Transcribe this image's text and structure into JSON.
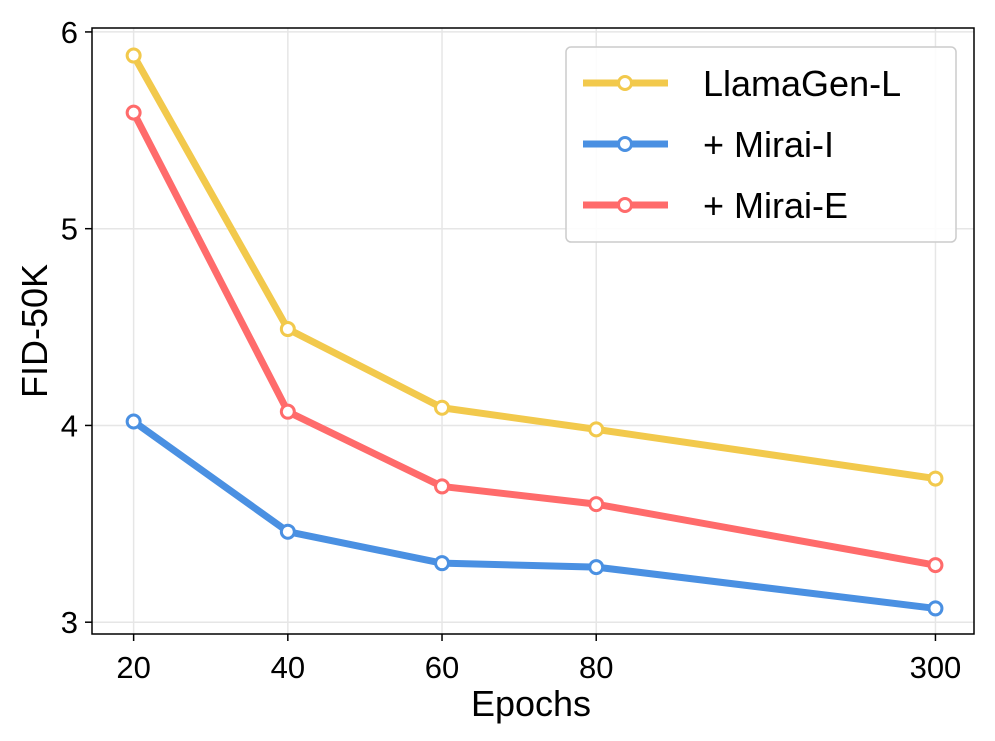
{
  "chart_data": {
    "type": "line",
    "title": "",
    "xlabel": "Epochs",
    "ylabel": "FID-50K",
    "categories": [
      "20",
      "40",
      "60",
      "80",
      "300"
    ],
    "x_positions": [
      0,
      1,
      2,
      3,
      5.2
    ],
    "xlim": [
      -0.27,
      5.45
    ],
    "ylim": [
      2.94,
      6.02
    ],
    "yticks": [
      3,
      4,
      5,
      6
    ],
    "grid": true,
    "legend_position": "top-right",
    "series": [
      {
        "name": "LlamaGen-L",
        "color": "#F2C94C",
        "values": [
          5.88,
          4.49,
          4.09,
          3.98,
          3.73
        ]
      },
      {
        "name": "+ Mirai-I",
        "color": "#4A90E2",
        "values": [
          4.02,
          3.46,
          3.3,
          3.28,
          3.07
        ]
      },
      {
        "name": "+ Mirai-E",
        "color": "#FF6B6B",
        "values": [
          5.59,
          4.07,
          3.69,
          3.6,
          3.29
        ]
      }
    ]
  }
}
